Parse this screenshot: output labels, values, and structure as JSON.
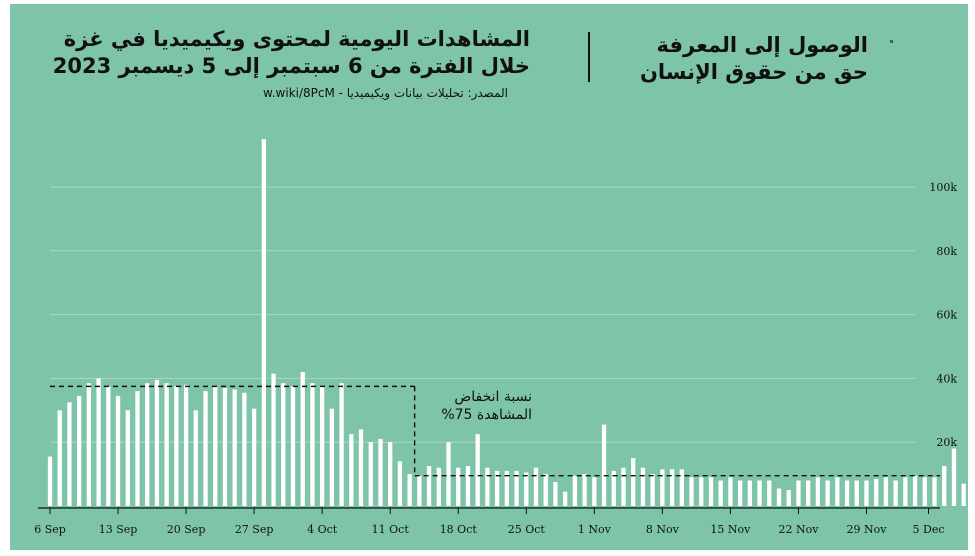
{
  "header": {
    "title_line1": "المشاهدات اليومية لمحتوى ويكيميديا في غزة",
    "title_line2": "خلال الفترة من 6 سبتمبر إلى 5 ديسمبر 2023",
    "source": "المصدر: تحليلات بيانات ويكيميديا - w.wiki/8PcM"
  },
  "brand": {
    "line1": "الوصول إلى المعرفة",
    "line2": "حق من حقوق الإنسان"
  },
  "annotation": {
    "line1": "نسبة انخفاض",
    "line2": "المشاهدة 75%"
  },
  "colors": {
    "background": "#7ec4a8",
    "bars": "#ffffff",
    "grid": "#a9d8c4",
    "text": "#111111"
  },
  "chart_data": {
    "type": "bar",
    "start_date": "6 Sep",
    "x_tick_labels": [
      "6 Sep",
      "13 Sep",
      "20 Sep",
      "27 Sep",
      "4 Oct",
      "11 Oct",
      "18 Oct",
      "25 Oct",
      "1 Nov",
      "8 Nov",
      "15 Nov",
      "22 Nov",
      "29 Nov",
      "5 Dec"
    ],
    "y_tick_labels": [
      "20k",
      "40k",
      "60k",
      "80k",
      "100k"
    ],
    "y_ticks": [
      20000,
      40000,
      60000,
      80000,
      100000
    ],
    "ylim": [
      0,
      110000
    ],
    "grid": true,
    "values": [
      15500,
      30000,
      32500,
      34500,
      38500,
      40000,
      37500,
      34500,
      30000,
      36000,
      38500,
      39500,
      38500,
      37500,
      38000,
      30000,
      36000,
      37500,
      37000,
      36500,
      35500,
      30500,
      115000,
      41500,
      38500,
      37500,
      42000,
      38500,
      37500,
      30500,
      38500,
      22500,
      24000,
      20000,
      21000,
      20000,
      14000,
      10000,
      9500,
      12500,
      12000,
      20000,
      12000,
      12500,
      22500,
      12000,
      11000,
      11000,
      11000,
      10500,
      12000,
      10000,
      7500,
      4500,
      9500,
      10000,
      9000,
      25500,
      11000,
      12000,
      15000,
      12000,
      10000,
      11500,
      11500,
      11500,
      9000,
      9000,
      9000,
      8000,
      9000,
      8000,
      8000,
      8000,
      8000,
      5500,
      5000,
      8000,
      8000,
      9000,
      8000,
      9000,
      8000,
      8000,
      8000,
      8500,
      9000,
      8000,
      9000,
      9500,
      9000,
      9000,
      12500,
      18000,
      7000,
      4000
    ],
    "reference_levels": [
      {
        "from": "6 Sep",
        "to": "13 Oct",
        "value": 37500
      },
      {
        "from": "13 Oct",
        "to": "5 Dec",
        "value": 9500
      }
    ]
  }
}
